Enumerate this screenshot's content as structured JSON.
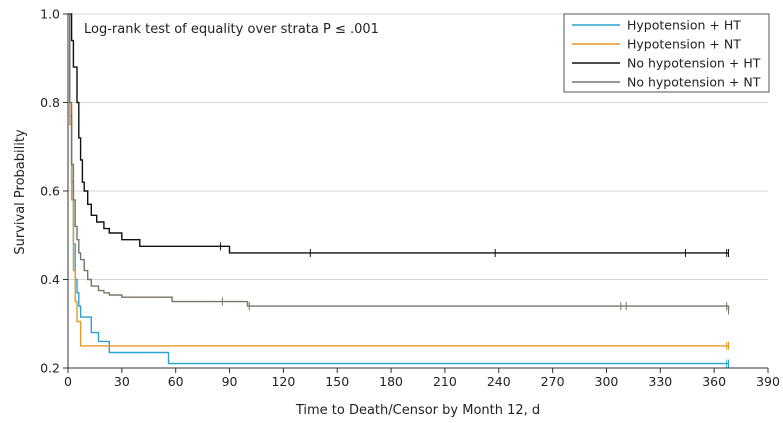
{
  "chart_data": {
    "type": "line",
    "step": true,
    "annotation": "Log-rank test of equality over strata P ≤ .001",
    "xlabel": "Time to Death/Censor by Month 12, d",
    "ylabel": "Survival Probability",
    "xlim": [
      0,
      390
    ],
    "ylim": [
      0.2,
      1.0
    ],
    "xticks": [
      0,
      30,
      60,
      90,
      120,
      150,
      180,
      210,
      240,
      270,
      300,
      330,
      360,
      390
    ],
    "yticks": [
      0.2,
      0.4,
      0.6,
      0.8,
      1.0
    ],
    "ytick_labels": [
      "0.2",
      "0.4",
      "0.6",
      "0.8",
      "1.0"
    ],
    "grid": "horizontal",
    "legend_position": "top-right",
    "series": [
      {
        "name": "Hypotension + HT",
        "color": "#2aa3d1",
        "x": [
          0,
          1,
          2,
          3,
          4,
          5,
          6,
          7,
          10,
          13,
          17,
          23,
          56,
          368
        ],
        "y": [
          1.0,
          0.77,
          0.62,
          0.48,
          0.4,
          0.37,
          0.34,
          0.315,
          0.315,
          0.28,
          0.26,
          0.235,
          0.21,
          0.21
        ],
        "censors": [
          367,
          368
        ]
      },
      {
        "name": "Hypotension + NT",
        "color": "#e59a2a",
        "x": [
          0,
          1,
          2,
          3,
          4,
          5,
          7,
          368
        ],
        "y": [
          1.0,
          0.75,
          0.58,
          0.42,
          0.35,
          0.305,
          0.25,
          0.25
        ],
        "censors": [
          367,
          368
        ]
      },
      {
        "name": "No hypotension + HT",
        "color": "#111111",
        "x": [
          0,
          2,
          3,
          5,
          6,
          7,
          8,
          9,
          11,
          13,
          16,
          20,
          23,
          30,
          40,
          60,
          90,
          368
        ],
        "y": [
          1.0,
          0.94,
          0.88,
          0.8,
          0.72,
          0.67,
          0.62,
          0.6,
          0.57,
          0.545,
          0.53,
          0.515,
          0.505,
          0.49,
          0.475,
          0.475,
          0.46,
          0.46
        ],
        "censors": [
          85,
          135,
          238,
          344,
          367,
          368
        ]
      },
      {
        "name": "No hypotension + NT",
        "color": "#7d7367",
        "x": [
          0,
          1,
          2,
          3,
          4,
          5,
          6,
          7,
          9,
          11,
          13,
          17,
          20,
          23,
          30,
          40,
          58,
          100,
          368
        ],
        "y": [
          1.0,
          0.8,
          0.66,
          0.58,
          0.52,
          0.49,
          0.46,
          0.445,
          0.42,
          0.4,
          0.385,
          0.375,
          0.37,
          0.365,
          0.36,
          0.36,
          0.35,
          0.34,
          0.33
        ],
        "censors": [
          86,
          101,
          308,
          311,
          367,
          368
        ]
      }
    ]
  }
}
